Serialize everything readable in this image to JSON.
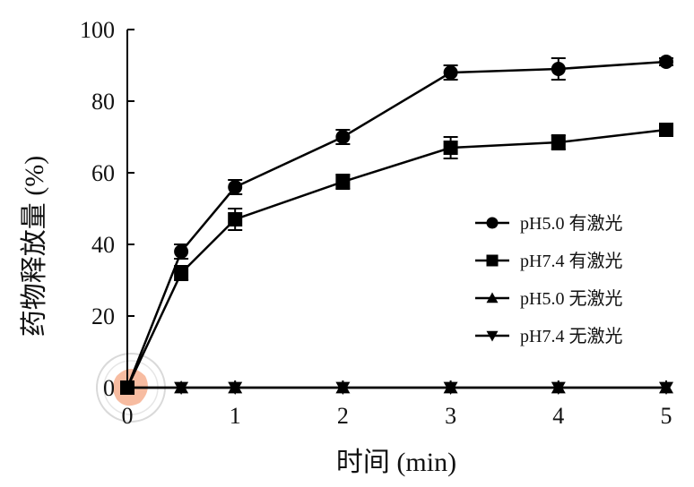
{
  "chart_data": {
    "type": "line",
    "title": "",
    "xlabel": "时间 (min)",
    "ylabel": "药物释放量 (%)",
    "xlim": [
      0,
      5
    ],
    "ylim": [
      0,
      100
    ],
    "x_ticks": [
      "0",
      "1",
      "2",
      "3",
      "4",
      "5"
    ],
    "y_ticks": [
      "0",
      "20",
      "40",
      "60",
      "80",
      "100"
    ],
    "grid": false,
    "legend_position": "center-right",
    "x": [
      0,
      0.5,
      1,
      2,
      3,
      4,
      5
    ],
    "series": [
      {
        "name": "pH5.0 有激光",
        "marker": "circle",
        "values": [
          0,
          38,
          56,
          70,
          88,
          89,
          91
        ],
        "errors": [
          0,
          2,
          2,
          2,
          2,
          3,
          1
        ]
      },
      {
        "name": "pH7.4 有激光",
        "marker": "square",
        "values": [
          0,
          32,
          47,
          57.5,
          67,
          68.5,
          72
        ],
        "errors": [
          0,
          2,
          3,
          2,
          3,
          2,
          1
        ]
      },
      {
        "name": "pH5.0 无激光",
        "marker": "triangle-up",
        "values": [
          0,
          0,
          0,
          0,
          0,
          0,
          0
        ],
        "errors": [
          0,
          0,
          0,
          0,
          0,
          0,
          0
        ]
      },
      {
        "name": "pH7.4 无激光",
        "marker": "triangle-down",
        "values": [
          0,
          0,
          0,
          0,
          0,
          0,
          0
        ],
        "errors": [
          0,
          0,
          0,
          0,
          0,
          0,
          0
        ]
      }
    ],
    "colors": {
      "line": "#000000",
      "axis": "#000000",
      "watermark": "#f4a582"
    }
  }
}
